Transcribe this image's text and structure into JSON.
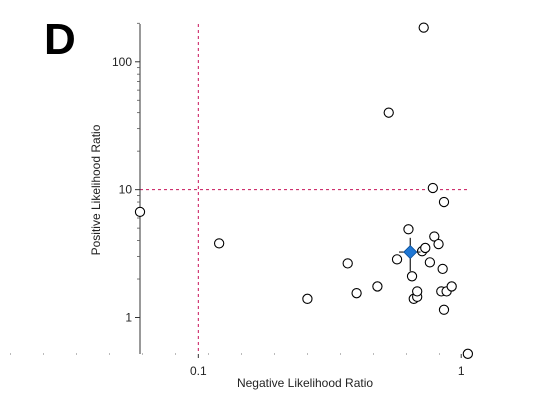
{
  "panel_label": "D",
  "chart_data": {
    "type": "scatter",
    "xlabel": "Negative Likelihood Ratio",
    "ylabel": "Positive Likelihood Ratio",
    "x_scale": "log",
    "y_scale": "log",
    "xlim": [
      0.06,
      1.08
    ],
    "ylim": [
      0.5,
      220
    ],
    "x_ticks": [
      {
        "value": 0.1,
        "label": "0.1"
      },
      {
        "value": 1,
        "label": "1"
      }
    ],
    "y_ticks": [
      {
        "value": 1,
        "label": "1"
      },
      {
        "value": 10,
        "label": "10"
      },
      {
        "value": 100,
        "label": "100"
      }
    ],
    "reference_lines": {
      "x": 0.1,
      "y": 10,
      "color": "#c8145a"
    },
    "grid": false,
    "studies": [
      {
        "x": 0.06,
        "y": 6.7
      },
      {
        "x": 0.12,
        "y": 3.8
      },
      {
        "x": 0.26,
        "y": 1.4
      },
      {
        "x": 0.37,
        "y": 2.65
      },
      {
        "x": 0.4,
        "y": 1.55
      },
      {
        "x": 0.48,
        "y": 1.75
      },
      {
        "x": 0.53,
        "y": 40
      },
      {
        "x": 0.57,
        "y": 2.85
      },
      {
        "x": 0.63,
        "y": 4.9
      },
      {
        "x": 0.65,
        "y": 2.1
      },
      {
        "x": 0.66,
        "y": 1.4
      },
      {
        "x": 0.68,
        "y": 1.45
      },
      {
        "x": 0.68,
        "y": 1.6
      },
      {
        "x": 0.71,
        "y": 3.3
      },
      {
        "x": 0.72,
        "y": 185
      },
      {
        "x": 0.73,
        "y": 3.5
      },
      {
        "x": 0.76,
        "y": 2.7
      },
      {
        "x": 0.78,
        "y": 10.3
      },
      {
        "x": 0.79,
        "y": 4.3
      },
      {
        "x": 0.82,
        "y": 3.75
      },
      {
        "x": 0.84,
        "y": 1.6
      },
      {
        "x": 0.85,
        "y": 2.4
      },
      {
        "x": 0.86,
        "y": 8
      },
      {
        "x": 0.86,
        "y": 1.15
      },
      {
        "x": 0.88,
        "y": 1.6
      },
      {
        "x": 0.92,
        "y": 1.75
      },
      {
        "x": 1.06,
        "y": 0.52
      }
    ],
    "summary": {
      "x": 0.64,
      "y": 3.25,
      "x_ci": [
        0.58,
        0.7
      ],
      "y_ci": [
        2.3,
        4.2
      ],
      "color": "#1f77d4"
    }
  }
}
